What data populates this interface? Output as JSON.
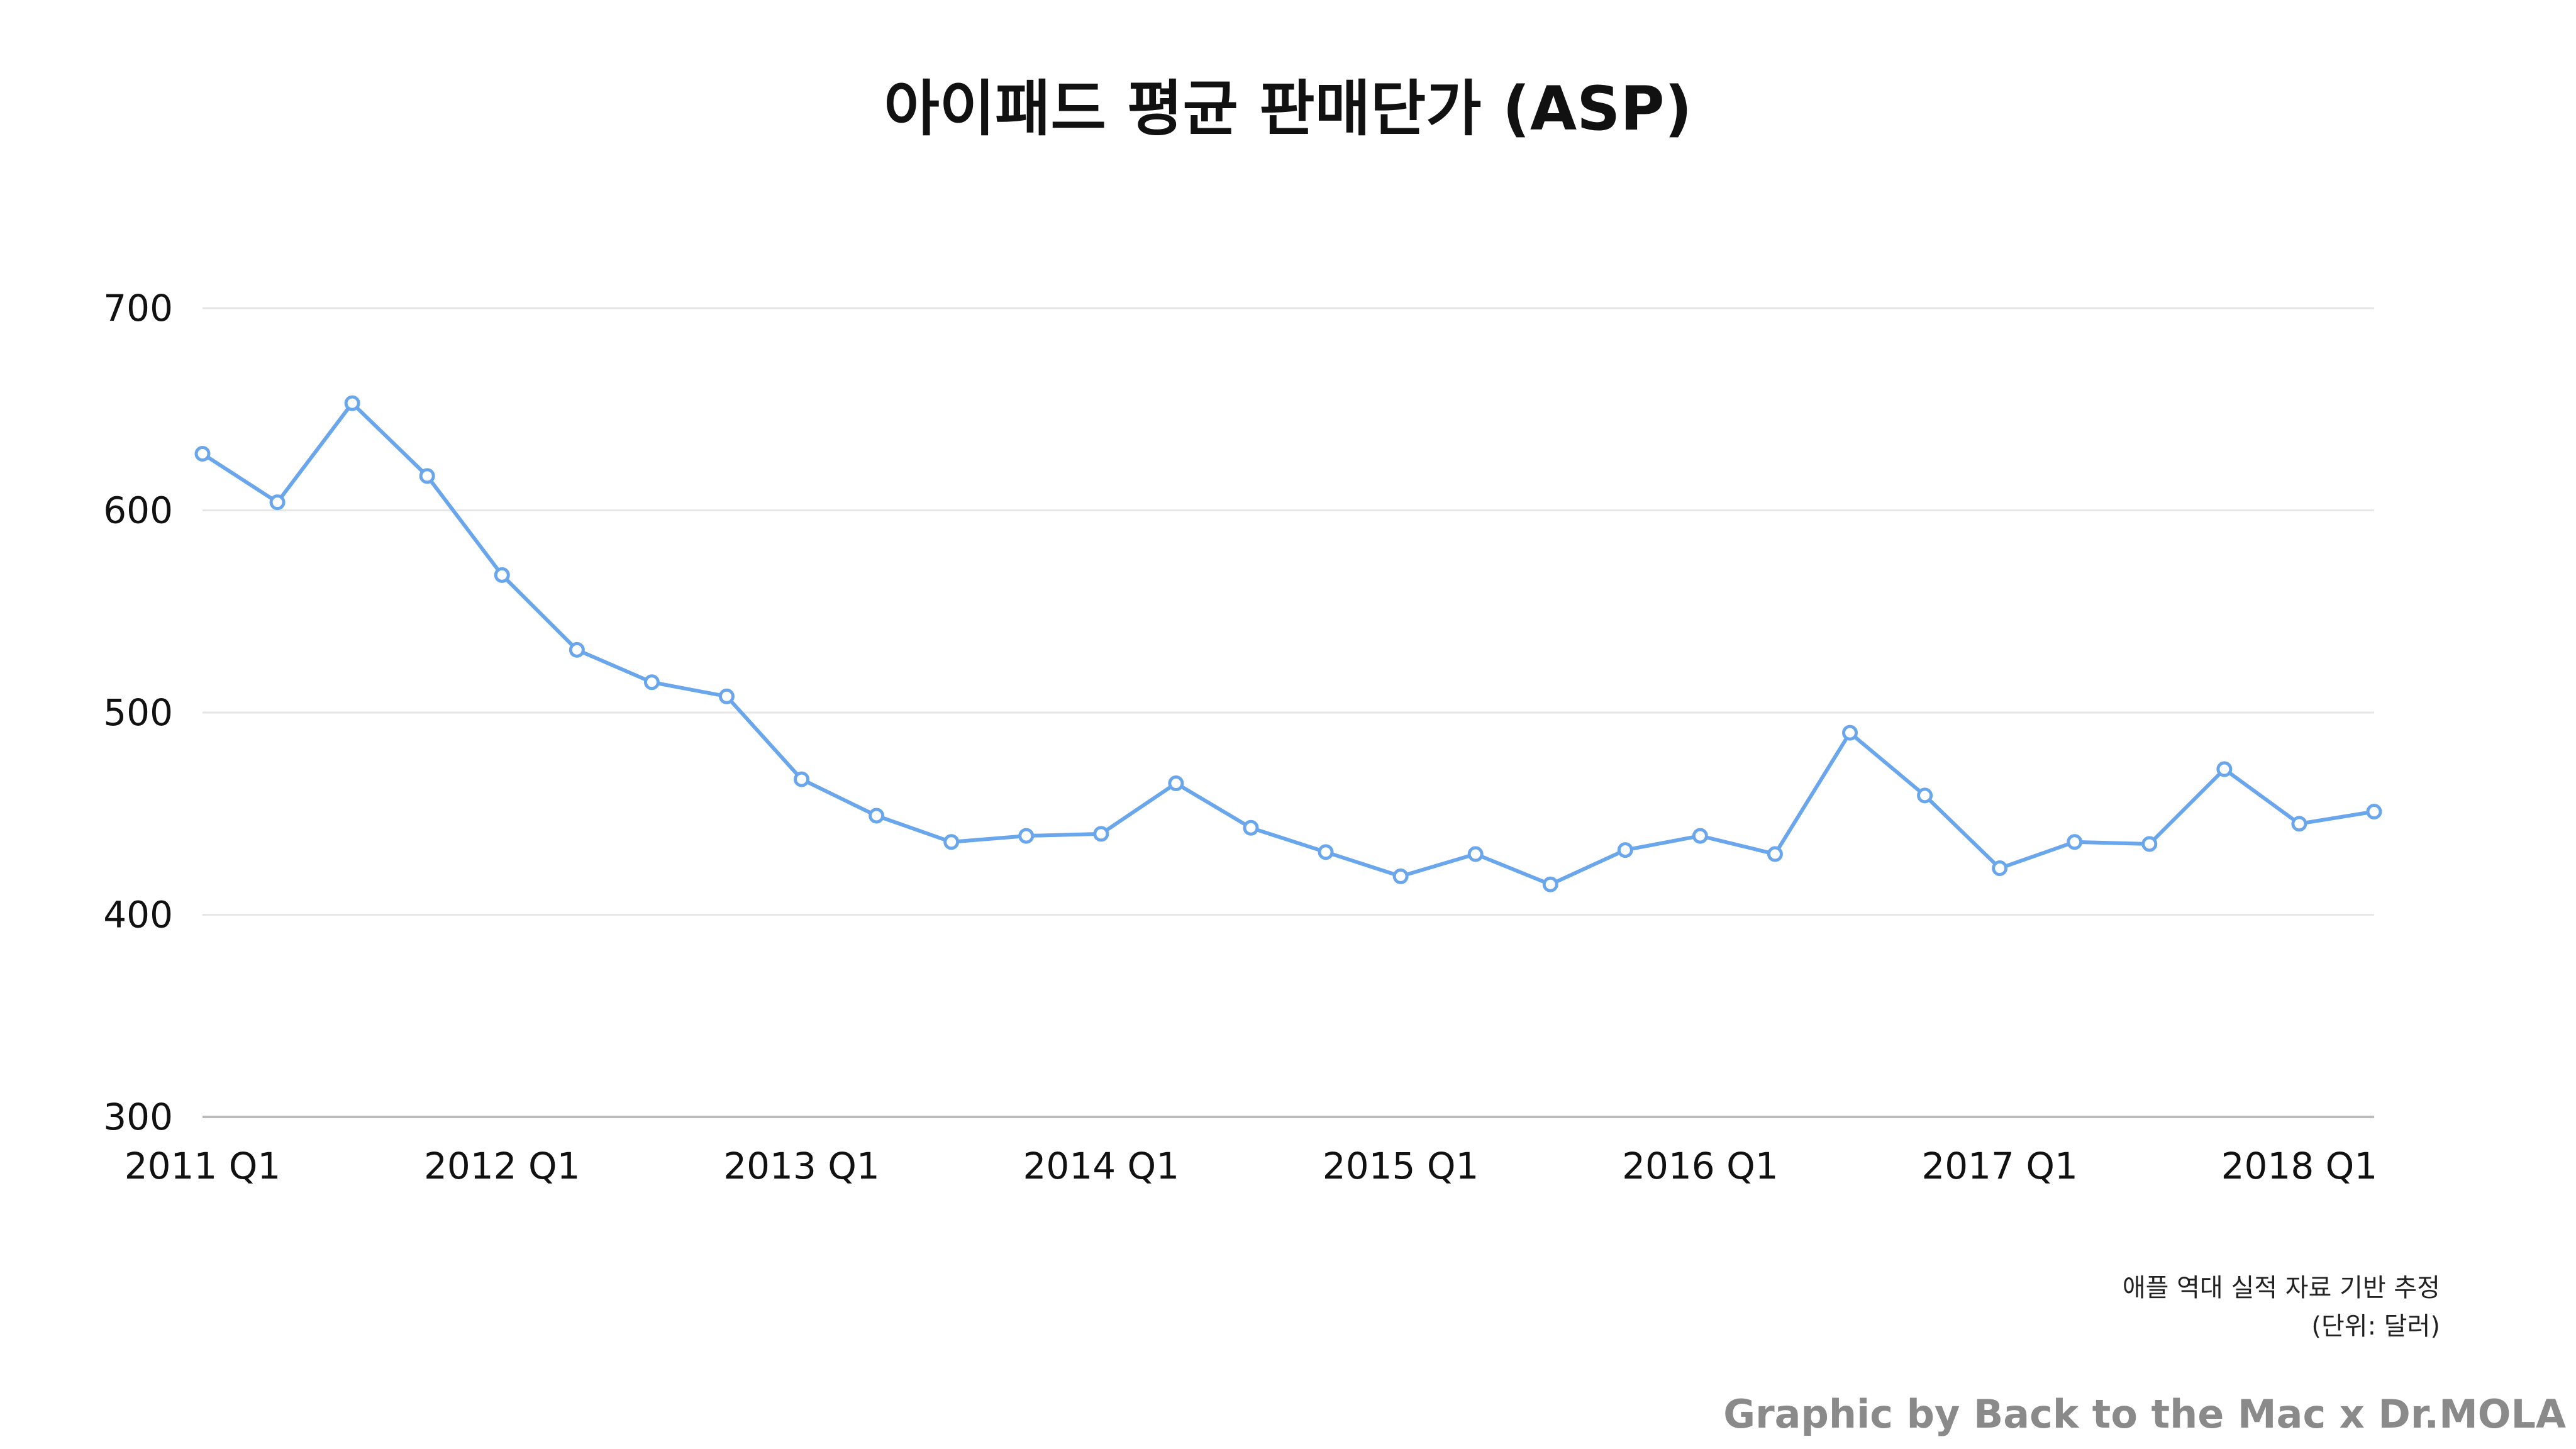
{
  "chart_data": {
    "type": "line",
    "title": "아이패드 평균 판매단가 (ASP)",
    "xlabel": "",
    "ylabel": "",
    "ylim": [
      300,
      700
    ],
    "yticks": [
      300,
      400,
      500,
      600,
      700
    ],
    "grid": true,
    "x": [
      "2011 Q1",
      "2011 Q2",
      "2011 Q3",
      "2011 Q4",
      "2012 Q1",
      "2012 Q2",
      "2012 Q3",
      "2012 Q4",
      "2013 Q1",
      "2013 Q2",
      "2013 Q3",
      "2013 Q4",
      "2014 Q1",
      "2014 Q2",
      "2014 Q3",
      "2014 Q4",
      "2015 Q1",
      "2015 Q2",
      "2015 Q3",
      "2015 Q4",
      "2016 Q1",
      "2016 Q2",
      "2016 Q3",
      "2016 Q4",
      "2017 Q1",
      "2017 Q2",
      "2017 Q3",
      "2017 Q4",
      "2018 Q1",
      "2018 Q2"
    ],
    "xtick_labels": [
      "2011 Q1",
      "2012 Q1",
      "2013 Q1",
      "2014 Q1",
      "2015 Q1",
      "2016 Q1",
      "2017 Q1",
      "2018 Q1"
    ],
    "series": [
      {
        "color": "#6aa6ec",
        "values": [
          628,
          604,
          653,
          617,
          568,
          531,
          515,
          508,
          467,
          449,
          436,
          439,
          440,
          465,
          443,
          431,
          419,
          430,
          415,
          432,
          439,
          430,
          490,
          459,
          423,
          436,
          435,
          472,
          445,
          451
        ]
      }
    ],
    "source_note": "애플 역대 실적 자료 기반 추정",
    "unit_note": "(단위: 달러)"
  },
  "credit": "Graphic by Back to the Mac x Dr.MOLA"
}
